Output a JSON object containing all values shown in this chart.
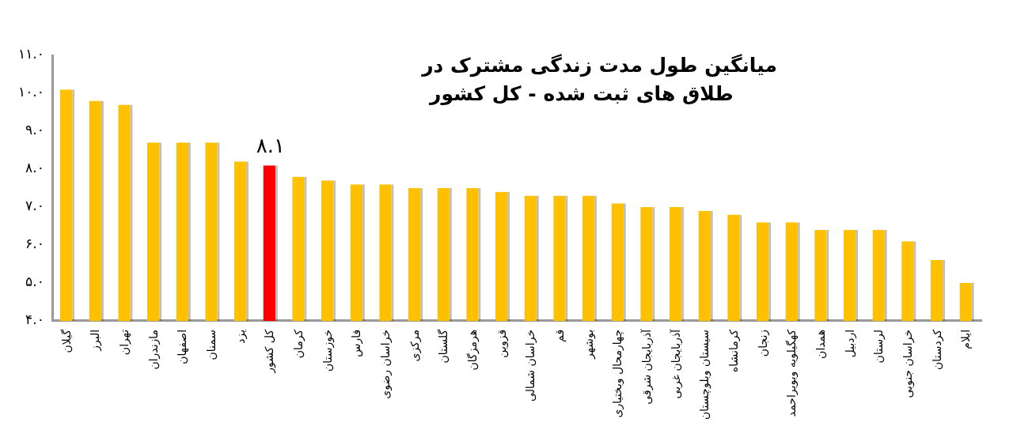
{
  "chart_data": {
    "type": "bar",
    "title": "میانگین طول مدت زندگی مشترک در\nطلاق های ثبت شده - کل کشور",
    "categories": [
      "گیلان",
      "البرز",
      "تهران",
      "مازندران",
      "اصفهان",
      "سمنان",
      "یزد",
      "کل کشور",
      "کرمان",
      "خوزستان",
      "فارس",
      "خراسان رضوی",
      "مرکزی",
      "گلستان",
      "هرمزگان",
      "قزوین",
      "خراسان شمالی",
      "قم",
      "بوشهر",
      "چهارمحال وبختیاری",
      "آذربایجان شرقی",
      "آذربایجان غربی",
      "سیستان وبلوچستان",
      "کرمانشاه",
      "زنجان",
      "کهگیلویه وبویراحمد",
      "همدان",
      "اردبیل",
      "لرستان",
      "خراسان جنوبی",
      "کردستان",
      "ایلام"
    ],
    "values": [
      10.1,
      9.8,
      9.7,
      8.7,
      8.7,
      8.7,
      8.2,
      8.1,
      7.8,
      7.7,
      7.6,
      7.6,
      7.5,
      7.5,
      7.5,
      7.4,
      7.3,
      7.3,
      7.3,
      7.1,
      7.0,
      7.0,
      6.9,
      6.8,
      6.6,
      6.6,
      6.4,
      6.4,
      6.4,
      6.1,
      5.6,
      5.0
    ],
    "colors": [
      "#ffc000",
      "#ffc000",
      "#ffc000",
      "#ffc000",
      "#ffc000",
      "#ffc000",
      "#ffc000",
      "#ff0000",
      "#ffc000",
      "#ffc000",
      "#ffc000",
      "#ffc000",
      "#ffc000",
      "#ffc000",
      "#ffc000",
      "#ffc000",
      "#ffc000",
      "#ffc000",
      "#ffc000",
      "#ffc000",
      "#ffc000",
      "#ffc000",
      "#ffc000",
      "#ffc000",
      "#ffc000",
      "#ffc000",
      "#ffc000",
      "#ffc000",
      "#ffc000",
      "#ffc000",
      "#ffc000",
      "#ffc000"
    ],
    "value_labels": [
      null,
      null,
      null,
      null,
      null,
      null,
      null,
      "۸.۱",
      null,
      null,
      null,
      null,
      null,
      null,
      null,
      null,
      null,
      null,
      null,
      null,
      null,
      null,
      null,
      null,
      null,
      null,
      null,
      null,
      null,
      null,
      null,
      null
    ],
    "ylim": [
      4,
      11
    ],
    "yticks": [
      {
        "value": 4,
        "label": "۴.۰"
      },
      {
        "value": 5,
        "label": "۵.۰"
      },
      {
        "value": 6,
        "label": "۶.۰"
      },
      {
        "value": 7,
        "label": "۷.۰"
      },
      {
        "value": 8,
        "label": "۸.۰"
      },
      {
        "value": 9,
        "label": "۹.۰"
      },
      {
        "value": 10,
        "label": "۱۰.۰"
      },
      {
        "value": 11,
        "label": "۱۱.۰"
      }
    ],
    "grid": false,
    "legend": false
  }
}
